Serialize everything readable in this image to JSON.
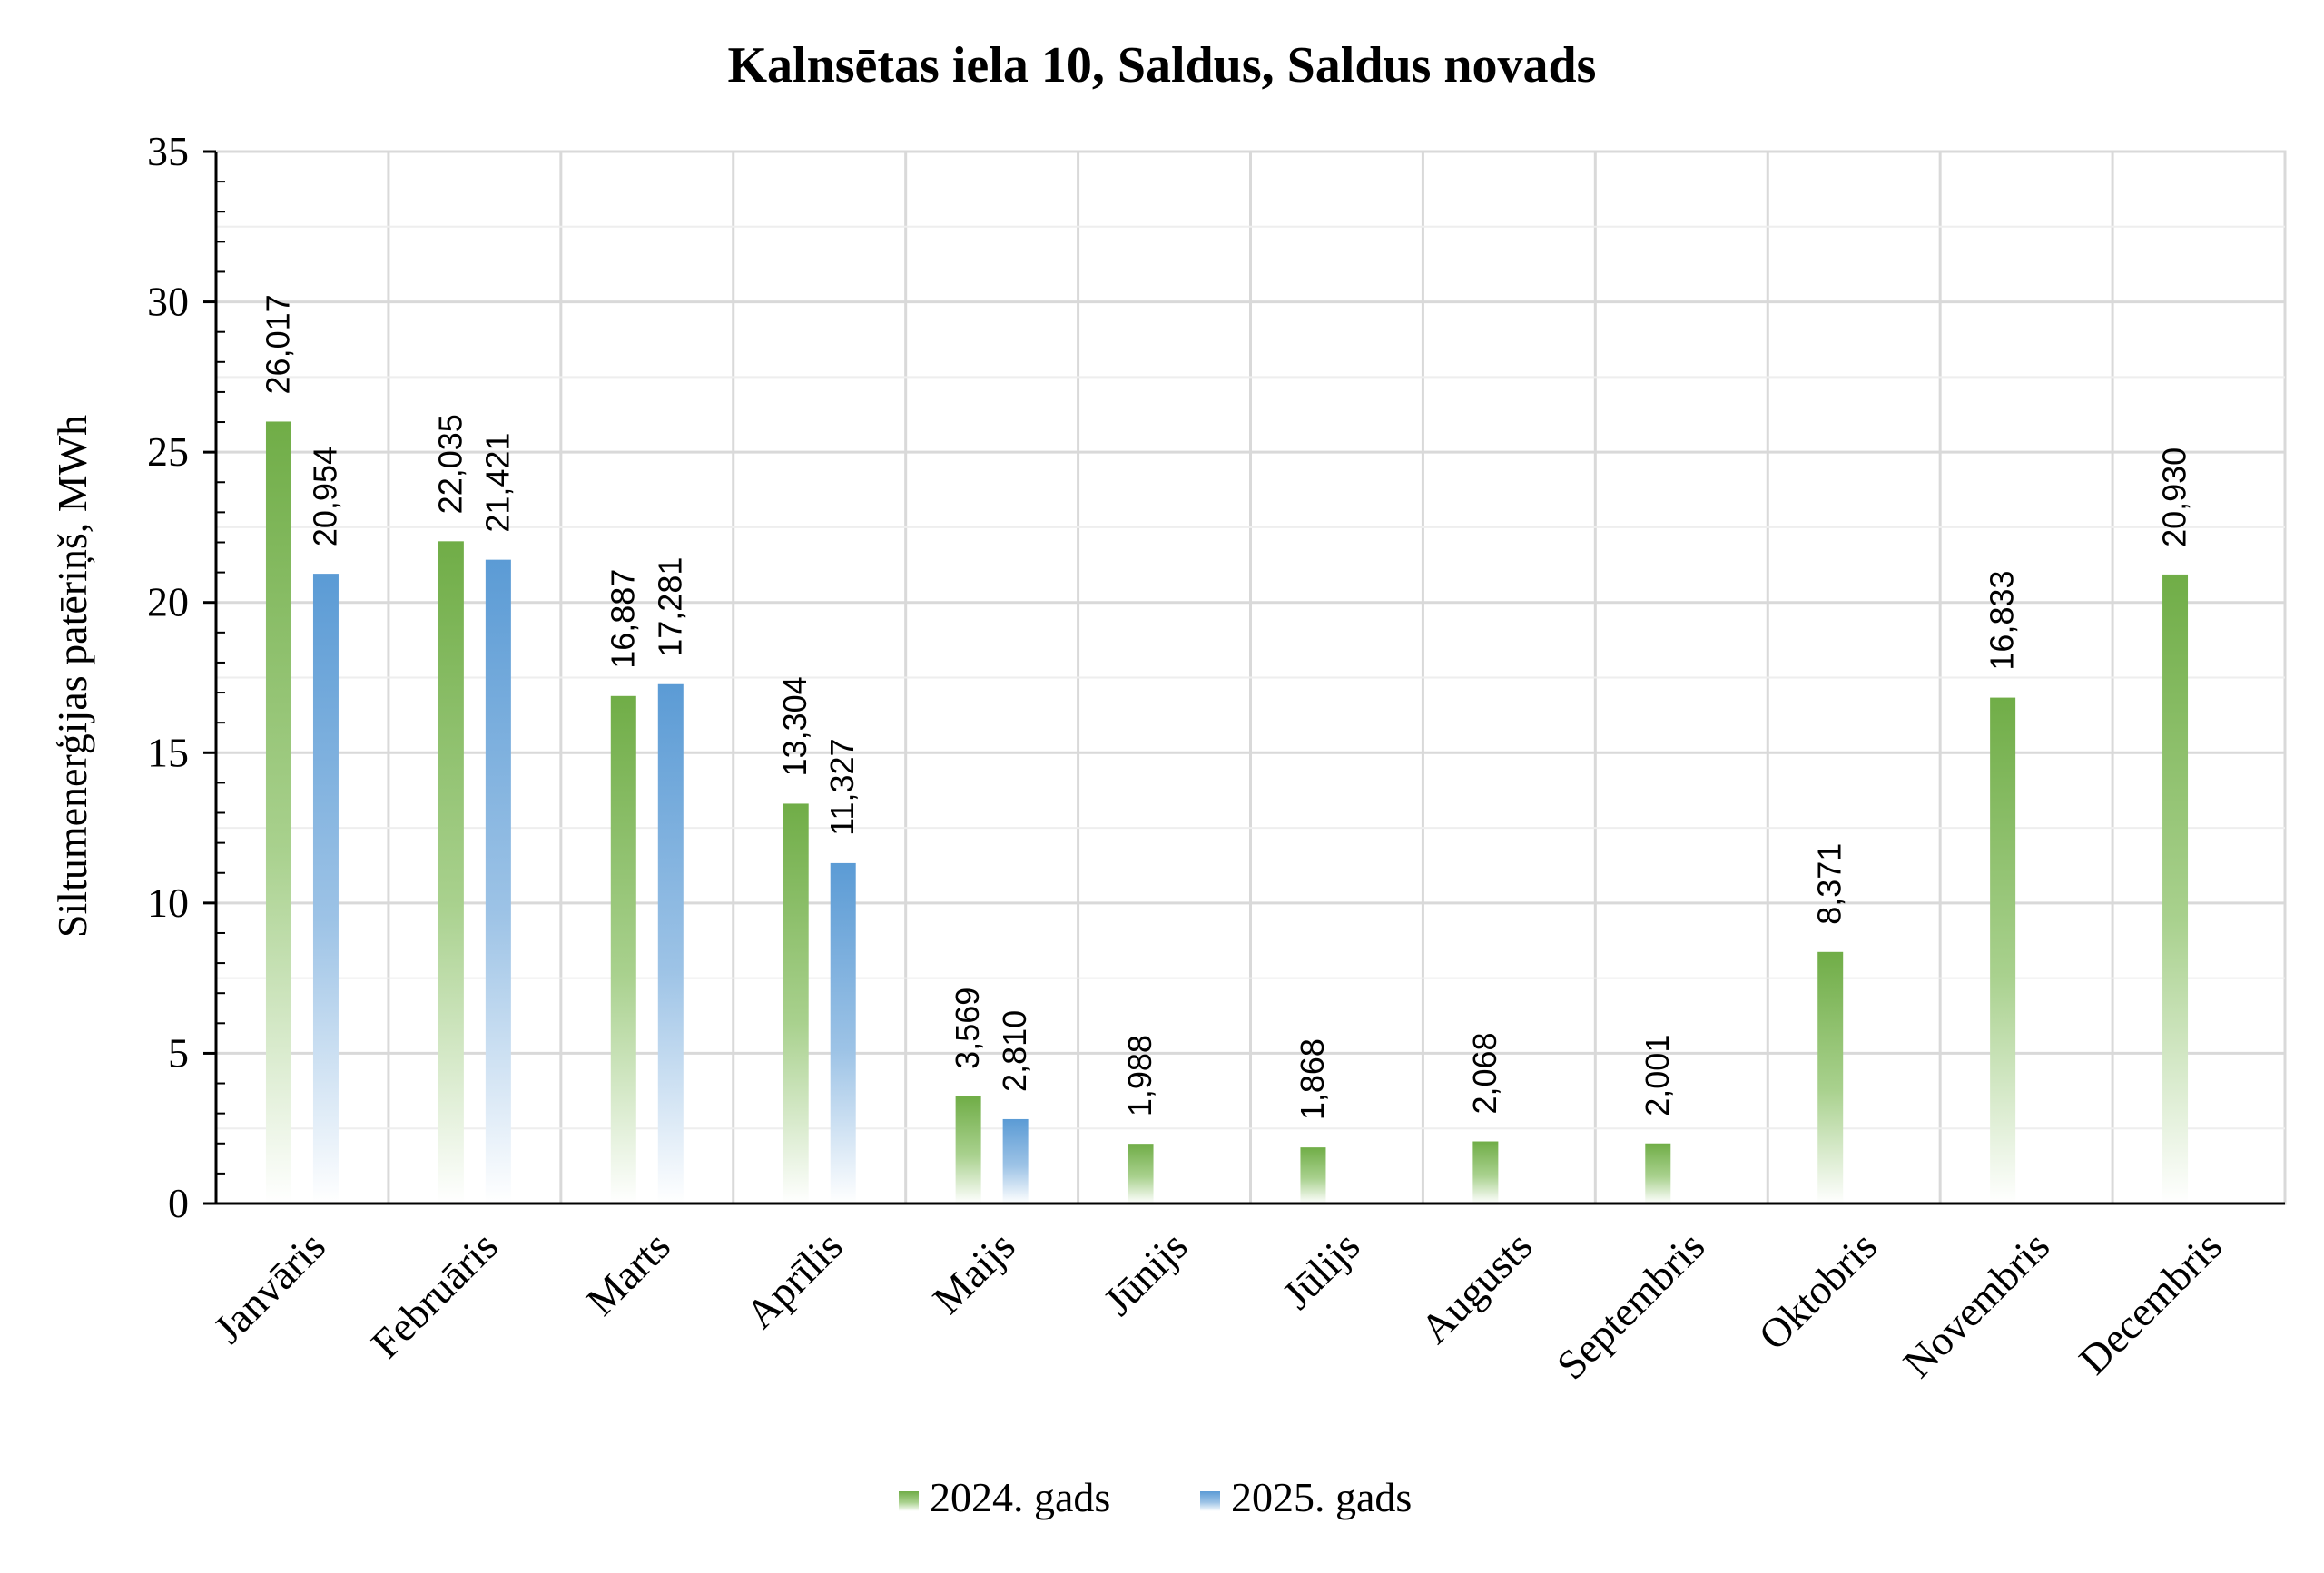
{
  "chart_data": {
    "type": "bar",
    "title": "Kalnsētas iela 10, Saldus, Saldus novads",
    "xlabel": "",
    "ylabel": "Siltumenerģijas patēriņš, MWh",
    "ylim": [
      0,
      35
    ],
    "yticks": [
      0,
      5,
      10,
      15,
      20,
      25,
      30,
      35
    ],
    "grid": true,
    "legend_position": "bottom",
    "categories": [
      "Janvāris",
      "Februāris",
      "Marts",
      "Aprīlis",
      "Maijs",
      "Jūnijs",
      "Jūlijs",
      "Augusts",
      "Septembris",
      "Oktobris",
      "Novembris",
      "Decembris"
    ],
    "series": [
      {
        "name": "2024. gads",
        "color": "#70ad47",
        "values": [
          26.017,
          22.035,
          16.887,
          13.304,
          3.569,
          1.988,
          1.868,
          2.068,
          2.001,
          8.371,
          16.833,
          20.93
        ],
        "labels": [
          "26,017",
          "22,035",
          "16,887",
          "13,304",
          "3,569",
          "1,988",
          "1,868",
          "2,068",
          "2,001",
          "8,371",
          "16,833",
          "20,930"
        ]
      },
      {
        "name": "2025. gads",
        "color": "#5b9bd5",
        "values": [
          20.954,
          21.421,
          17.281,
          11.327,
          2.81,
          null,
          null,
          null,
          null,
          null,
          null,
          null
        ],
        "labels": [
          "20,954",
          "21,421",
          "17,281",
          "11,327",
          "2,810",
          null,
          null,
          null,
          null,
          null,
          null,
          null
        ]
      }
    ]
  }
}
